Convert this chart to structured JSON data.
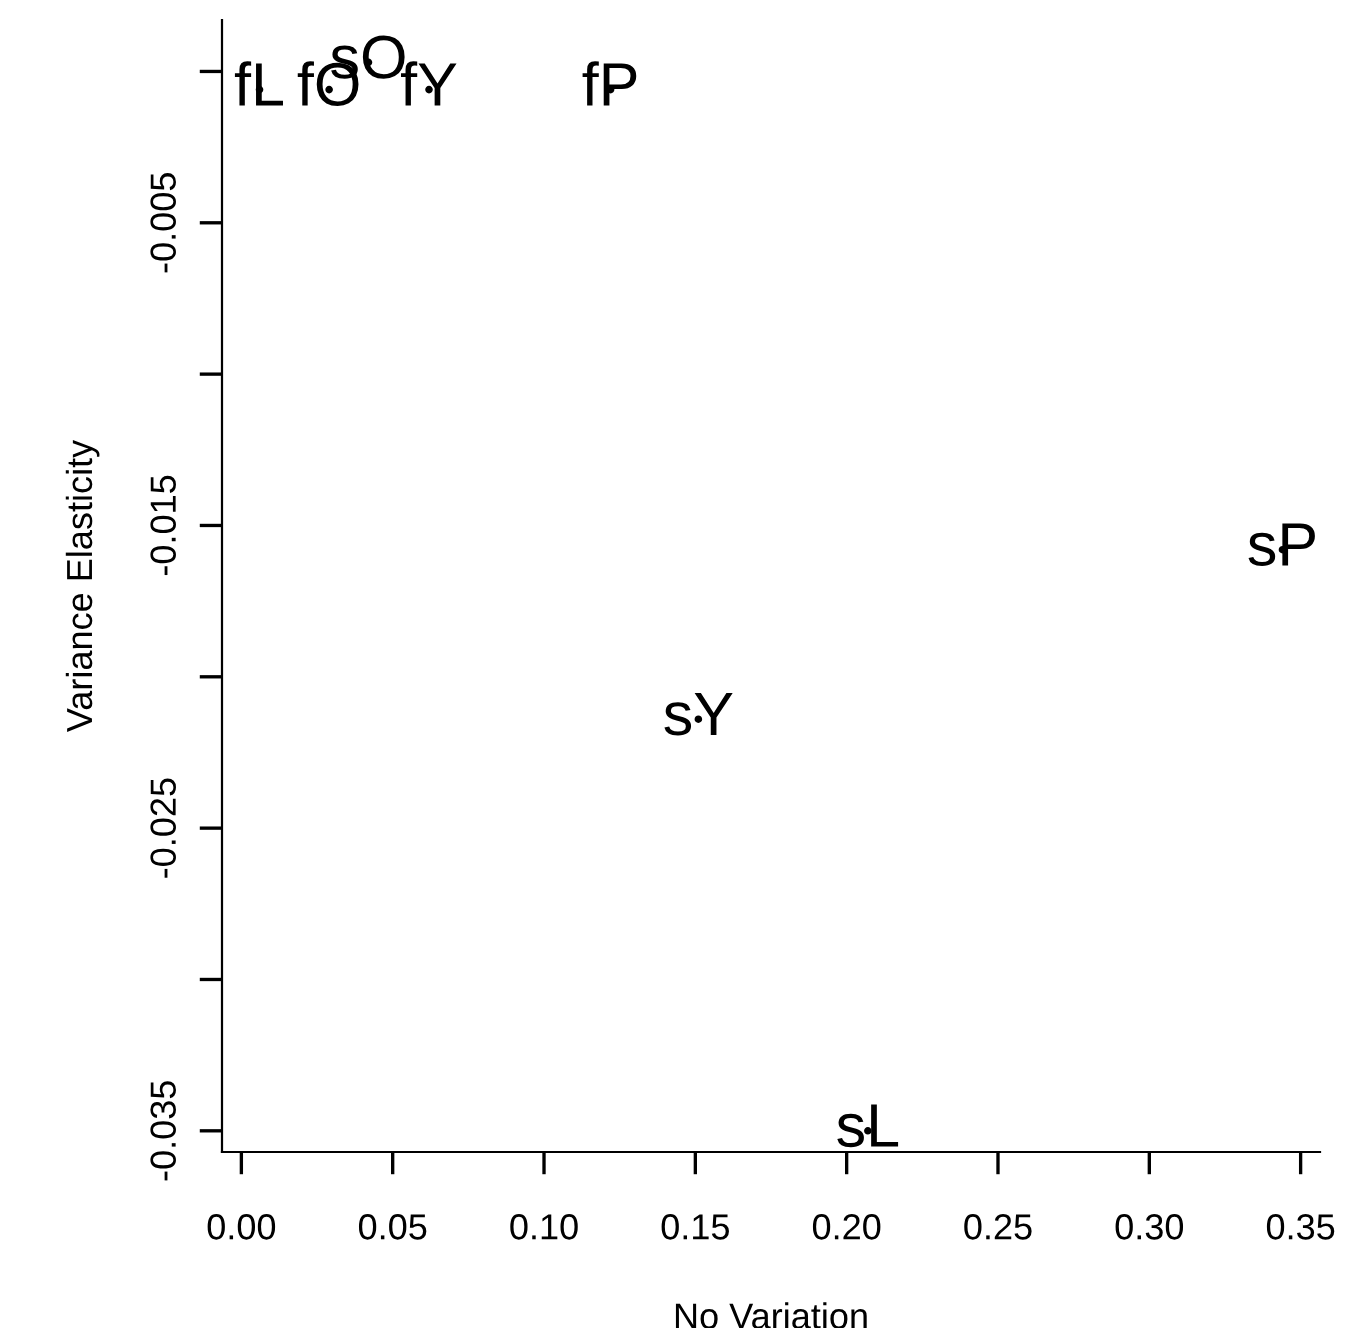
{
  "chart_data": {
    "type": "scatter",
    "xlabel": "No Variation",
    "ylabel": "Variance Elasticity",
    "xlim": [
      -0.0064,
      0.3564
    ],
    "ylim": [
      -0.0357,
      0.0017
    ],
    "xticks": [
      {
        "value": 0,
        "label": "0.00"
      },
      {
        "value": 0.05,
        "label": "0.05"
      },
      {
        "value": 0.1,
        "label": "0.10"
      },
      {
        "value": 0.15,
        "label": "0.15"
      },
      {
        "value": 0.2,
        "label": "0.20"
      },
      {
        "value": 0.25,
        "label": "0.25"
      },
      {
        "value": 0.3,
        "label": "0.30"
      },
      {
        "value": 0.35,
        "label": "0.35"
      }
    ],
    "yticks": [
      {
        "value": 0,
        "label": null
      },
      -0.005,
      {
        "value": -0.01,
        "label": null
      },
      -0.015,
      {
        "value": -0.02,
        "label": null
      },
      -0.025,
      {
        "value": -0.03,
        "label": null
      },
      -0.035
    ],
    "marker": "none",
    "grid": false,
    "legend": false,
    "series": [
      {
        "color": "#000000",
        "x": [
          0.006,
          0.029,
          0.042,
          0.062,
          0.122,
          0.344,
          0.151,
          0.207
        ],
        "values": [
          -0.0006,
          -0.0006,
          0.0003,
          -0.0006,
          -0.0006,
          -0.0158,
          -0.0214,
          -0.035
        ],
        "value_labels": [
          "fL",
          "fO",
          "sO",
          "fY",
          "fP",
          "sP",
          "sY",
          "sL"
        ]
      }
    ]
  }
}
